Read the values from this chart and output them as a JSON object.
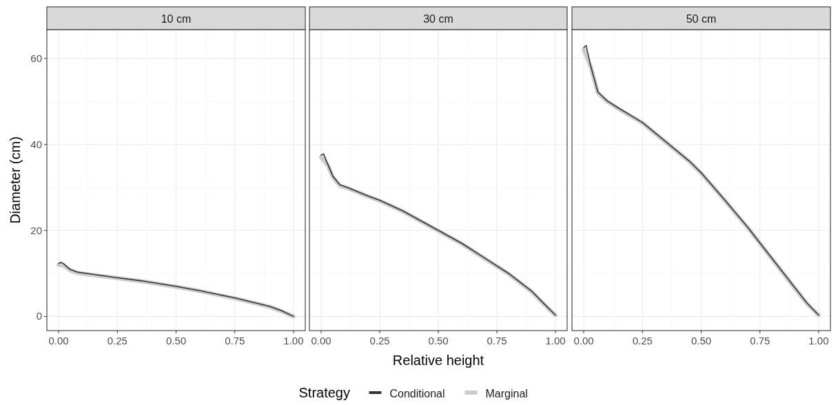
{
  "chart_data": [
    {
      "type": "line",
      "title": "10 cm",
      "ylabel": "Diameter (cm)",
      "xlim": [
        -0.05,
        1.05
      ],
      "ylim": [
        -3.3,
        66.7
      ],
      "xticks": [
        {
          "value": 0,
          "label": "0.00"
        },
        {
          "value": 0.25,
          "label": "0.25"
        },
        {
          "value": 0.5,
          "label": "0.50"
        },
        {
          "value": 0.75,
          "label": "0.75"
        },
        {
          "value": 1,
          "label": "1.00"
        }
      ],
      "yticks": [
        0,
        20,
        40,
        60
      ],
      "grid": true,
      "legend": "bottom",
      "legend_title": "Strategy",
      "series": [
        {
          "name": "Conditional",
          "color": "#333333",
          "x": [
            0,
            0.01,
            0.02,
            0.05,
            0.08,
            0.12,
            0.25,
            0.35,
            0.5,
            0.6,
            0.75,
            0.85,
            0.9,
            0.95,
            1.0
          ],
          "values": [
            12.3,
            12.6,
            12.3,
            10.9,
            10.3,
            10.0,
            9.0,
            8.3,
            7.0,
            6.0,
            4.3,
            3.0,
            2.3,
            1.3,
            0
          ]
        },
        {
          "name": "Marginal",
          "color": "#cccccc",
          "x": [
            0,
            0.02,
            0.05,
            0.08,
            0.12,
            0.25,
            0.35,
            0.5,
            0.6,
            0.75,
            0.85,
            0.9,
            0.95,
            1.0
          ],
          "values": [
            12.0,
            11.9,
            10.7,
            10.1,
            9.8,
            8.9,
            8.2,
            6.9,
            5.9,
            4.2,
            2.9,
            2.2,
            1.2,
            0
          ]
        }
      ]
    },
    {
      "type": "line",
      "title": "30 cm",
      "xlabel": "Relative height",
      "xlim": [
        -0.05,
        1.05
      ],
      "ylim": [
        -3.3,
        66.7
      ],
      "xticks": [
        {
          "value": 0,
          "label": "0.00"
        },
        {
          "value": 0.25,
          "label": "0.25"
        },
        {
          "value": 0.5,
          "label": "0.50"
        },
        {
          "value": 0.75,
          "label": "0.75"
        },
        {
          "value": 1,
          "label": "1.00"
        }
      ],
      "yticks": [
        0,
        20,
        40,
        60
      ],
      "grid": true,
      "tick_labels": "x",
      "series": [
        {
          "name": "Conditional",
          "color": "#333333",
          "x": [
            0,
            0.01,
            0.03,
            0.05,
            0.08,
            0.12,
            0.2,
            0.25,
            0.35,
            0.5,
            0.6,
            0.7,
            0.8,
            0.9,
            0.95,
            1.0
          ],
          "values": [
            37.5,
            37.8,
            35.2,
            32.6,
            30.6,
            29.8,
            28.0,
            27.0,
            24.5,
            20.0,
            17.0,
            13.5,
            10.0,
            5.8,
            3.0,
            0.3
          ]
        },
        {
          "name": "Marginal",
          "color": "#cccccc",
          "x": [
            0,
            0.03,
            0.05,
            0.08,
            0.12,
            0.2,
            0.25,
            0.35,
            0.5,
            0.6,
            0.7,
            0.8,
            0.9,
            0.95,
            1.0
          ],
          "values": [
            37.0,
            35.0,
            32.4,
            30.4,
            29.7,
            27.9,
            26.9,
            24.4,
            19.9,
            16.9,
            13.4,
            9.9,
            5.7,
            2.9,
            0.3
          ]
        }
      ]
    },
    {
      "type": "line",
      "title": "50 cm",
      "xlim": [
        -0.05,
        1.05
      ],
      "ylim": [
        -3.3,
        66.7
      ],
      "xticks": [
        {
          "value": 0,
          "label": "0.00"
        },
        {
          "value": 0.25,
          "label": "0.25"
        },
        {
          "value": 0.5,
          "label": "0.50"
        },
        {
          "value": 0.75,
          "label": "0.75"
        },
        {
          "value": 1,
          "label": "1.00"
        }
      ],
      "yticks": [
        0,
        20,
        40,
        60
      ],
      "grid": true,
      "tick_labels": "x",
      "series": [
        {
          "name": "Conditional",
          "color": "#333333",
          "x": [
            0,
            0.01,
            0.03,
            0.06,
            0.1,
            0.15,
            0.25,
            0.35,
            0.45,
            0.5,
            0.6,
            0.7,
            0.75,
            0.8,
            0.9,
            0.95,
            1.0
          ],
          "values": [
            62.5,
            63.0,
            58.2,
            52.2,
            50.1,
            48.4,
            45.1,
            40.6,
            36.1,
            33.4,
            27.1,
            20.6,
            17.1,
            13.6,
            6.6,
            3.1,
            0.3
          ]
        },
        {
          "name": "Marginal",
          "color": "#cccccc",
          "x": [
            0,
            0.03,
            0.06,
            0.1,
            0.15,
            0.25,
            0.35,
            0.45,
            0.5,
            0.6,
            0.7,
            0.75,
            0.8,
            0.9,
            0.95,
            1.0
          ],
          "values": [
            62.0,
            58.0,
            52.0,
            50.0,
            48.2,
            45.0,
            40.5,
            36.0,
            33.3,
            27.0,
            20.5,
            17.0,
            13.5,
            6.5,
            3.0,
            0.3
          ]
        }
      ]
    }
  ]
}
